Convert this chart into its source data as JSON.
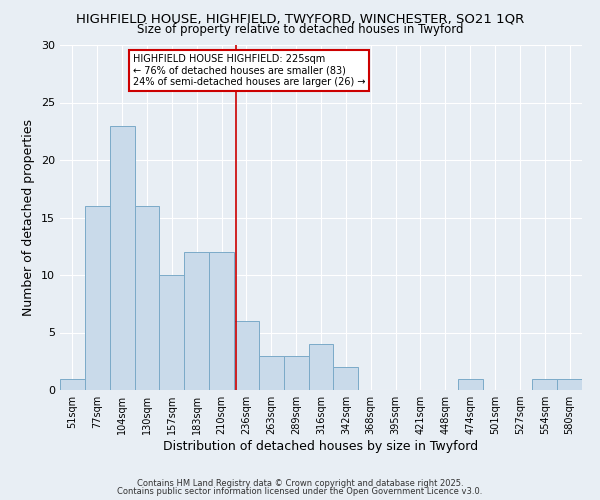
{
  "title1": "HIGHFIELD HOUSE, HIGHFIELD, TWYFORD, WINCHESTER, SO21 1QR",
  "title2": "Size of property relative to detached houses in Twyford",
  "xlabel": "Distribution of detached houses by size in Twyford",
  "ylabel": "Number of detached properties",
  "categories": [
    "51sqm",
    "77sqm",
    "104sqm",
    "130sqm",
    "157sqm",
    "183sqm",
    "210sqm",
    "236sqm",
    "263sqm",
    "289sqm",
    "316sqm",
    "342sqm",
    "368sqm",
    "395sqm",
    "421sqm",
    "448sqm",
    "474sqm",
    "501sqm",
    "527sqm",
    "554sqm",
    "580sqm"
  ],
  "values": [
    1,
    16,
    23,
    16,
    10,
    12,
    12,
    6,
    3,
    3,
    4,
    2,
    0,
    0,
    0,
    0,
    1,
    0,
    0,
    1,
    1
  ],
  "bar_color": "#c9daea",
  "bar_edge_color": "#7baac8",
  "highlight_line_color": "#cc0000",
  "annotation_line1": "HIGHFIELD HOUSE HIGHFIELD: 225sqm",
  "annotation_line2": "← 76% of detached houses are smaller (83)",
  "annotation_line3": "24% of semi-detached houses are larger (26) →",
  "annotation_box_color": "#cc0000",
  "ylim": [
    0,
    30
  ],
  "yticks": [
    0,
    5,
    10,
    15,
    20,
    25,
    30
  ],
  "background_color": "#e8eef4",
  "grid_color": "#ffffff",
  "footer1": "Contains HM Land Registry data © Crown copyright and database right 2025.",
  "footer2": "Contains public sector information licensed under the Open Government Licence v3.0."
}
